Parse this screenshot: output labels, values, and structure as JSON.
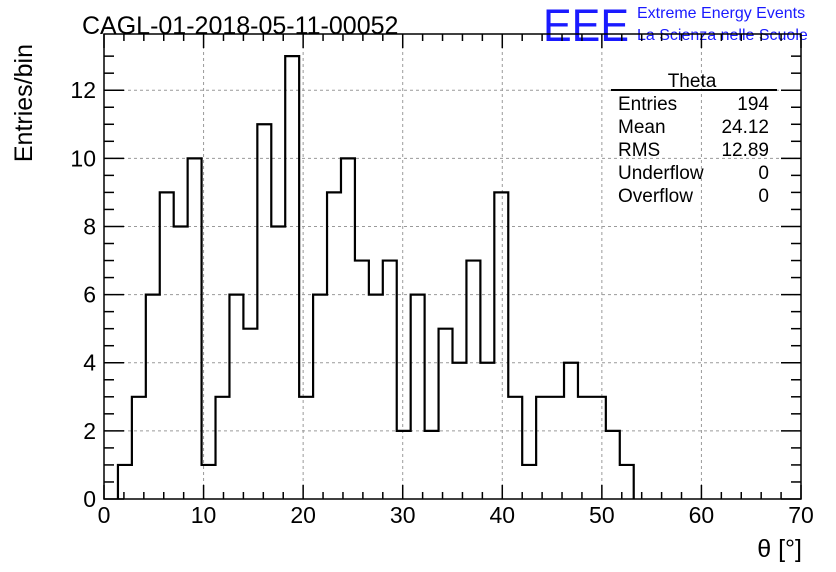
{
  "chart_data": {
    "type": "bar",
    "style": "step-histogram",
    "title": "CAGL-01-2018-05-11-00052",
    "xlabel": "θ [°]",
    "ylabel": "Entries/bin",
    "xlim": [
      0,
      70
    ],
    "ylim": [
      0,
      13.65
    ],
    "grid": true,
    "bin_width": 1.4,
    "x_ticks": [
      "0",
      "10",
      "20",
      "30",
      "40",
      "50",
      "60",
      "70"
    ],
    "y_ticks": [
      "0",
      "2",
      "4",
      "6",
      "8",
      "10",
      "12"
    ],
    "x": [
      1.4,
      2.8,
      4.2,
      5.6,
      7.0,
      8.4,
      9.8,
      11.2,
      12.6,
      14.0,
      15.4,
      16.8,
      18.2,
      19.6,
      21.0,
      22.4,
      23.8,
      25.2,
      26.6,
      28.0,
      29.4,
      30.8,
      32.2,
      33.6,
      35.0,
      36.4,
      37.8,
      39.2,
      40.6,
      42.0,
      43.4,
      44.8,
      46.2,
      47.6,
      49.0,
      50.4,
      51.8
    ],
    "values": [
      1,
      3,
      6,
      9,
      8,
      10,
      1,
      3,
      6,
      5,
      11,
      8,
      13,
      3,
      6,
      9,
      10,
      7,
      6,
      7,
      2,
      6,
      2,
      5,
      4,
      7,
      4,
      9,
      3,
      1,
      3,
      3,
      4,
      3,
      3,
      2,
      1
    ],
    "stats": {
      "title": "Theta",
      "rows": [
        {
          "label": "Entries",
          "value": "194"
        },
        {
          "label": "Mean",
          "value": "24.12"
        },
        {
          "label": "RMS",
          "value": "12.89"
        },
        {
          "label": "Underflow",
          "value": "0"
        },
        {
          "label": "Overflow",
          "value": "0"
        }
      ]
    }
  },
  "logo": {
    "letters": "EEE",
    "line1": "Extreme Energy Events",
    "line2": "La Scienza nelle Scuole",
    "color": "#1a1aff"
  }
}
